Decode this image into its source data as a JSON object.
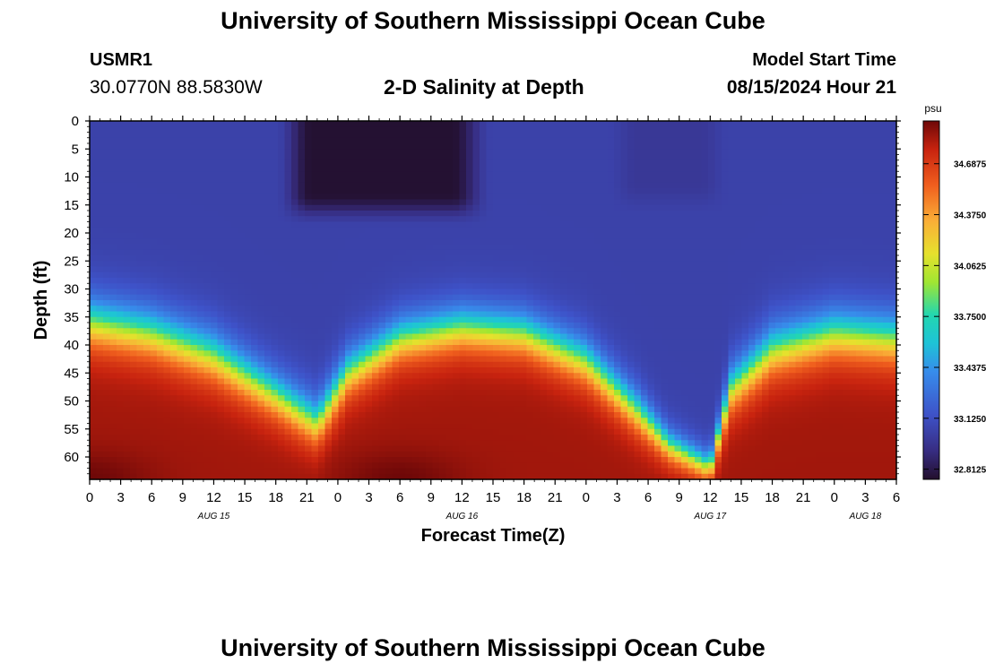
{
  "header": {
    "main_title": "University of Southern Mississippi Ocean Cube",
    "station_id": "USMR1",
    "station_coords": "30.0770N  88.5830W",
    "plot_title": "2-D Salinity at Depth",
    "model_label": "Model Start Time",
    "model_date": "08/15/2024 Hour 21"
  },
  "footer": {
    "title": "University of Southern Mississippi Ocean Cube"
  },
  "chart_data": {
    "type": "heatmap",
    "title": "2-D Salinity at Depth",
    "xlabel": "Forecast Time(Z)",
    "ylabel": "Depth (ft)",
    "x_tick_labels": [
      "0",
      "3",
      "6",
      "9",
      "12",
      "15",
      "18",
      "21",
      "0",
      "3",
      "6",
      "9",
      "12",
      "15",
      "18",
      "21",
      "0",
      "3",
      "6",
      "9",
      "12",
      "15",
      "18",
      "21",
      "0",
      "3",
      "6"
    ],
    "date_labels": [
      {
        "label": "AUG 15",
        "at_hour": 12
      },
      {
        "label": "AUG 16",
        "at_hour": 36
      },
      {
        "label": "AUG 17",
        "at_hour": 60
      },
      {
        "label": "AUG 18",
        "at_hour": 75
      }
    ],
    "xlim_hours": [
      0,
      78
    ],
    "ylim_ft": [
      0,
      64
    ],
    "y_ticks": [
      0,
      5,
      10,
      15,
      20,
      25,
      30,
      35,
      40,
      45,
      50,
      55,
      60
    ],
    "colorbar": {
      "unit": "psu",
      "range": [
        32.75,
        34.95
      ],
      "ticks": [
        32.8125,
        33.125,
        33.4375,
        33.75,
        34.0625,
        34.375,
        34.6875
      ],
      "tick_labels": [
        "32.8125",
        "33.1250",
        "33.4375",
        "33.7500",
        "34.0625",
        "34.3750",
        "34.6875"
      ]
    },
    "grid": false,
    "surface_salinity": 33.05,
    "bottom_salinity": 34.85,
    "halocline_profile": [
      {
        "hour": 0,
        "depth_ft": 36,
        "width_ft": 11
      },
      {
        "hour": 6,
        "depth_ft": 38,
        "width_ft": 11
      },
      {
        "hour": 12,
        "depth_ft": 42,
        "width_ft": 11
      },
      {
        "hour": 18,
        "depth_ft": 49,
        "width_ft": 10
      },
      {
        "hour": 22,
        "depth_ft": 54,
        "width_ft": 10
      },
      {
        "hour": 25,
        "depth_ft": 45,
        "width_ft": 10
      },
      {
        "hour": 30,
        "depth_ft": 39,
        "width_ft": 10
      },
      {
        "hour": 36,
        "depth_ft": 37,
        "width_ft": 10
      },
      {
        "hour": 42,
        "depth_ft": 38,
        "width_ft": 10
      },
      {
        "hour": 48,
        "depth_ft": 43,
        "width_ft": 10
      },
      {
        "hour": 53,
        "depth_ft": 52,
        "width_ft": 9
      },
      {
        "hour": 56,
        "depth_ft": 58,
        "width_ft": 7
      },
      {
        "hour": 60,
        "depth_ft": 62,
        "width_ft": 6
      },
      {
        "hour": 62,
        "depth_ft": 48,
        "width_ft": 10
      },
      {
        "hour": 66,
        "depth_ft": 41,
        "width_ft": 11
      },
      {
        "hour": 72,
        "depth_ft": 38,
        "width_ft": 11
      },
      {
        "hour": 78,
        "depth_ft": 39,
        "width_ft": 11
      }
    ],
    "fresh_lens": {
      "hour_start": 19,
      "hour_end": 38,
      "depth_max_ft": 17,
      "salinity": 32.76
    },
    "secondary_fresh_patch": {
      "hour_start": 50,
      "hour_end": 62,
      "depth_max_ft": 15,
      "salinity": 32.95
    },
    "bottom_maxima": [
      {
        "hour": 0,
        "depth_ft": 64,
        "salinity": 34.95
      },
      {
        "hour": 30,
        "depth_ft": 64,
        "salinity": 34.95
      },
      {
        "hour": 72,
        "depth_ft": 62,
        "salinity": 34.8
      }
    ]
  }
}
